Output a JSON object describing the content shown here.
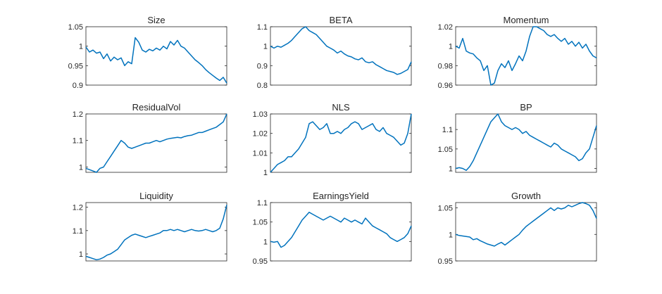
{
  "figure": {
    "line_color": "#0072BD"
  },
  "chart_data": [
    {
      "type": "line",
      "title": "Size",
      "ylim": [
        0.9,
        1.05
      ],
      "yticks": [
        "0.9",
        "0.95",
        "1",
        "1.05"
      ],
      "ytick_values": [
        0.9,
        0.95,
        1,
        1.05
      ],
      "values": [
        0.998,
        0.985,
        0.99,
        0.982,
        0.985,
        0.968,
        0.98,
        0.962,
        0.972,
        0.965,
        0.97,
        0.95,
        0.96,
        0.955,
        1.022,
        1.01,
        0.99,
        0.985,
        0.992,
        0.988,
        0.995,
        0.99,
        1.0,
        0.993,
        1.012,
        1.003,
        1.015,
        1.0,
        0.995,
        0.985,
        0.975,
        0.965,
        0.958,
        0.95,
        0.94,
        0.932,
        0.925,
        0.918,
        0.912,
        0.92,
        0.905
      ]
    },
    {
      "type": "line",
      "title": "BETA",
      "ylim": [
        0.8,
        1.1
      ],
      "yticks": [
        "0.8",
        "0.9",
        "1",
        "1.1"
      ],
      "ytick_values": [
        0.8,
        0.9,
        1,
        1.1
      ],
      "values": [
        1.0,
        0.99,
        1.0,
        0.995,
        1.005,
        1.015,
        1.03,
        1.05,
        1.07,
        1.09,
        1.1,
        1.08,
        1.07,
        1.06,
        1.04,
        1.02,
        1.0,
        0.99,
        0.98,
        0.965,
        0.975,
        0.96,
        0.95,
        0.945,
        0.935,
        0.93,
        0.94,
        0.92,
        0.915,
        0.92,
        0.905,
        0.895,
        0.885,
        0.875,
        0.87,
        0.865,
        0.855,
        0.86,
        0.87,
        0.88,
        0.92
      ]
    },
    {
      "type": "line",
      "title": "Momentum",
      "ylim": [
        0.96,
        1.02
      ],
      "yticks": [
        "0.96",
        "0.98",
        "1",
        "1.02"
      ],
      "ytick_values": [
        0.96,
        0.98,
        1,
        1.02
      ],
      "values": [
        1.0,
        0.998,
        1.008,
        0.995,
        0.993,
        0.992,
        0.988,
        0.985,
        0.975,
        0.98,
        0.96,
        0.962,
        0.975,
        0.982,
        0.978,
        0.985,
        0.975,
        0.982,
        0.99,
        0.985,
        0.995,
        1.01,
        1.02,
        1.022,
        1.018,
        1.016,
        1.012,
        1.01,
        1.012,
        1.008,
        1.005,
        1.008,
        1.002,
        1.005,
        1.0,
        1.004,
        0.998,
        1.002,
        0.995,
        0.99,
        0.988
      ]
    },
    {
      "type": "line",
      "title": "ResidualVol",
      "ylim": [
        0.98,
        1.2
      ],
      "yticks": [
        "1",
        "1.1",
        "1.2"
      ],
      "ytick_values": [
        1,
        1.1,
        1.2
      ],
      "values": [
        0.995,
        0.99,
        0.985,
        0.98,
        0.995,
        1.0,
        1.02,
        1.04,
        1.06,
        1.08,
        1.1,
        1.09,
        1.075,
        1.07,
        1.075,
        1.08,
        1.085,
        1.09,
        1.09,
        1.095,
        1.1,
        1.095,
        1.1,
        1.105,
        1.108,
        1.11,
        1.112,
        1.11,
        1.115,
        1.118,
        1.12,
        1.125,
        1.13,
        1.13,
        1.135,
        1.14,
        1.145,
        1.15,
        1.16,
        1.17,
        1.2
      ]
    },
    {
      "type": "line",
      "title": "NLS",
      "ylim": [
        1.0,
        1.03
      ],
      "yticks": [
        "1",
        "1.01",
        "1.02",
        "1.03"
      ],
      "ytick_values": [
        1,
        1.01,
        1.02,
        1.03
      ],
      "values": [
        1.0,
        1.002,
        1.004,
        1.005,
        1.006,
        1.008,
        1.008,
        1.01,
        1.012,
        1.015,
        1.018,
        1.025,
        1.026,
        1.024,
        1.022,
        1.023,
        1.025,
        1.02,
        1.02,
        1.021,
        1.02,
        1.022,
        1.023,
        1.025,
        1.026,
        1.025,
        1.022,
        1.023,
        1.024,
        1.025,
        1.022,
        1.021,
        1.023,
        1.02,
        1.019,
        1.018,
        1.016,
        1.014,
        1.015,
        1.02,
        1.03
      ]
    },
    {
      "type": "line",
      "title": "BP",
      "ylim": [
        0.99,
        1.14
      ],
      "yticks": [
        "1",
        "1.05",
        "1.1"
      ],
      "ytick_values": [
        1,
        1.05,
        1.1
      ],
      "values": [
        1.0,
        1.002,
        1.0,
        0.995,
        1.005,
        1.02,
        1.04,
        1.06,
        1.08,
        1.1,
        1.12,
        1.13,
        1.14,
        1.12,
        1.11,
        1.105,
        1.1,
        1.105,
        1.1,
        1.09,
        1.095,
        1.085,
        1.08,
        1.075,
        1.07,
        1.065,
        1.06,
        1.055,
        1.065,
        1.06,
        1.05,
        1.045,
        1.04,
        1.035,
        1.03,
        1.02,
        1.025,
        1.04,
        1.05,
        1.08,
        1.11
      ]
    },
    {
      "type": "line",
      "title": "Liquidity",
      "ylim": [
        0.97,
        1.22
      ],
      "yticks": [
        "1",
        "1.1",
        "1.2"
      ],
      "ytick_values": [
        1,
        1.1,
        1.2
      ],
      "values": [
        0.99,
        0.985,
        0.98,
        0.975,
        0.978,
        0.985,
        0.995,
        1.0,
        1.01,
        1.02,
        1.04,
        1.06,
        1.07,
        1.08,
        1.085,
        1.08,
        1.075,
        1.07,
        1.075,
        1.08,
        1.085,
        1.09,
        1.1,
        1.1,
        1.105,
        1.1,
        1.105,
        1.1,
        1.095,
        1.1,
        1.105,
        1.1,
        1.098,
        1.1,
        1.105,
        1.1,
        1.095,
        1.1,
        1.11,
        1.15,
        1.21
      ]
    },
    {
      "type": "line",
      "title": "EarningsYield",
      "ylim": [
        0.95,
        1.1
      ],
      "yticks": [
        "0.95",
        "1",
        "1.05",
        "1.1"
      ],
      "ytick_values": [
        0.95,
        1,
        1.05,
        1.1
      ],
      "values": [
        1.0,
        0.998,
        1.0,
        0.985,
        0.99,
        1.0,
        1.01,
        1.025,
        1.04,
        1.055,
        1.065,
        1.075,
        1.07,
        1.065,
        1.06,
        1.055,
        1.06,
        1.065,
        1.06,
        1.055,
        1.05,
        1.06,
        1.055,
        1.05,
        1.055,
        1.05,
        1.045,
        1.06,
        1.05,
        1.04,
        1.035,
        1.03,
        1.025,
        1.02,
        1.01,
        1.005,
        1.0,
        1.005,
        1.01,
        1.02,
        1.04
      ]
    },
    {
      "type": "line",
      "title": "Growth",
      "ylim": [
        0.95,
        1.06
      ],
      "yticks": [
        "0.95",
        "1",
        "1.05"
      ],
      "ytick_values": [
        0.95,
        1,
        1.05
      ],
      "values": [
        1.0,
        0.998,
        0.997,
        0.996,
        0.995,
        0.99,
        0.992,
        0.988,
        0.985,
        0.982,
        0.98,
        0.978,
        0.982,
        0.985,
        0.98,
        0.985,
        0.99,
        0.995,
        1.0,
        1.008,
        1.015,
        1.02,
        1.025,
        1.03,
        1.035,
        1.04,
        1.045,
        1.05,
        1.045,
        1.05,
        1.048,
        1.05,
        1.055,
        1.052,
        1.055,
        1.058,
        1.06,
        1.058,
        1.055,
        1.045,
        1.03
      ]
    }
  ]
}
